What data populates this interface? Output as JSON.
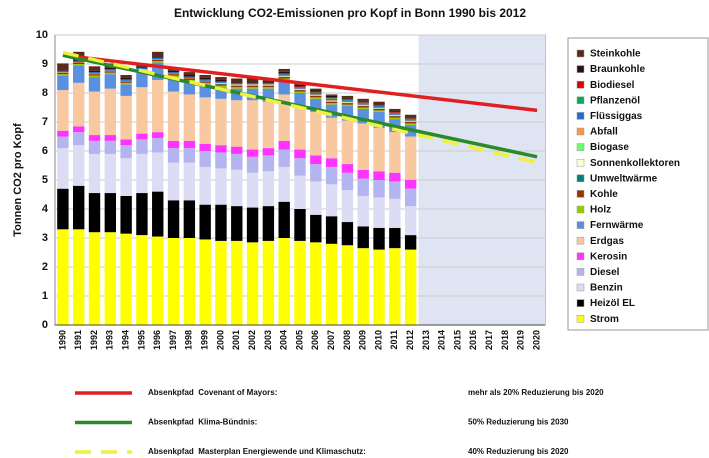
{
  "chart_data": {
    "type": "bar",
    "stacked": true,
    "title": "Entwicklung CO2-Emissionen pro Kopf in Bonn 1990 bis 2012",
    "y_label": "Tonnen CO2 pro Kopf",
    "categories": [
      "1990",
      "1991",
      "1992",
      "1993",
      "1994",
      "1995",
      "1996",
      "1997",
      "1998",
      "1999",
      "2000",
      "2001",
      "2002",
      "2003",
      "2004",
      "2005",
      "2006",
      "2007",
      "2008",
      "2009",
      "2010",
      "2011",
      "2012",
      "2013",
      "2014",
      "2015",
      "2016",
      "2017",
      "2018",
      "2019",
      "2020"
    ],
    "ylim": [
      0,
      10
    ],
    "yticks": [
      0,
      1,
      2,
      3,
      4,
      5,
      6,
      7,
      8,
      9,
      10
    ],
    "grid": true,
    "legend": "right",
    "series": [
      {
        "name": "Steinkohle",
        "color": "#5a2a1a",
        "values": [
          0.2,
          0.25,
          0.15,
          0.15,
          0.1,
          0.1,
          0.15,
          0.1,
          0.1,
          0.1,
          0.1,
          0.1,
          0.1,
          0.1,
          0.1,
          0.05,
          0.05,
          0.05,
          0.05,
          0.05,
          0.05,
          0.05,
          0.05,
          null,
          null,
          null,
          null,
          null,
          null,
          null,
          null
        ]
      },
      {
        "name": "Braunkohle",
        "color": "#2a1010",
        "values": [
          0.05,
          0.05,
          0.05,
          0.05,
          0.05,
          0.05,
          0.05,
          0.05,
          0.05,
          0.05,
          0.05,
          0.05,
          0.05,
          0.05,
          0.05,
          0.05,
          0.05,
          0.05,
          0.05,
          0.05,
          0.05,
          0.05,
          0.05,
          null,
          null,
          null,
          null,
          null,
          null,
          null,
          null
        ]
      },
      {
        "name": "Biodiesel",
        "color": "#e00000",
        "values": [
          0,
          0,
          0,
          0,
          0,
          0,
          0,
          0,
          0,
          0,
          0,
          0,
          0,
          0,
          0.03,
          0.03,
          0.03,
          0.03,
          0.03,
          0.03,
          0.03,
          0.03,
          0.03,
          null,
          null,
          null,
          null,
          null,
          null,
          null,
          null
        ]
      },
      {
        "name": "Pflanzenöl",
        "color": "#00b050",
        "values": [
          0,
          0,
          0,
          0,
          0,
          0,
          0,
          0,
          0,
          0,
          0,
          0,
          0,
          0,
          0,
          0,
          0.02,
          0.02,
          0.02,
          0.02,
          0.02,
          0.02,
          0.02,
          null,
          null,
          null,
          null,
          null,
          null,
          null,
          null
        ]
      },
      {
        "name": "Flüssiggas",
        "color": "#1f6fd0",
        "values": [
          0.05,
          0.05,
          0.05,
          0.05,
          0.05,
          0.05,
          0.05,
          0.05,
          0.05,
          0.05,
          0.05,
          0.05,
          0.05,
          0.05,
          0.05,
          0.05,
          0.05,
          0.05,
          0.05,
          0.05,
          0.05,
          0.05,
          0.05,
          null,
          null,
          null,
          null,
          null,
          null,
          null,
          null
        ]
      },
      {
        "name": "Abfall",
        "color": "#f79646",
        "values": [
          0.02,
          0.02,
          0.02,
          0.02,
          0.02,
          0.02,
          0.02,
          0.02,
          0.02,
          0.02,
          0.02,
          0.02,
          0.02,
          0.02,
          0.02,
          0.02,
          0.02,
          0.02,
          0.02,
          0.02,
          0.02,
          0.02,
          0.02,
          null,
          null,
          null,
          null,
          null,
          null,
          null,
          null
        ]
      },
      {
        "name": "Biogase",
        "color": "#66ff66",
        "values": [
          0,
          0,
          0,
          0,
          0,
          0,
          0,
          0,
          0,
          0,
          0.01,
          0.01,
          0.01,
          0.01,
          0.01,
          0.01,
          0.01,
          0.01,
          0.01,
          0.01,
          0.01,
          0.01,
          0.01,
          null,
          null,
          null,
          null,
          null,
          null,
          null,
          null
        ]
      },
      {
        "name": "Sonnenkollektoren",
        "color": "#ffffcc",
        "values": [
          0,
          0,
          0,
          0,
          0,
          0,
          0,
          0,
          0,
          0,
          0.01,
          0.01,
          0.01,
          0.01,
          0.01,
          0.01,
          0.01,
          0.01,
          0.01,
          0.01,
          0.01,
          0.01,
          0.01,
          null,
          null,
          null,
          null,
          null,
          null,
          null,
          null
        ]
      },
      {
        "name": "Umweltwärme",
        "color": "#008080",
        "values": [
          0,
          0,
          0,
          0,
          0,
          0,
          0,
          0,
          0,
          0,
          0.01,
          0.01,
          0.01,
          0.01,
          0.01,
          0.01,
          0.01,
          0.01,
          0.01,
          0.01,
          0.01,
          0.01,
          0.01,
          null,
          null,
          null,
          null,
          null,
          null,
          null,
          null
        ]
      },
      {
        "name": "Kohle",
        "color": "#993300",
        "values": [
          0.05,
          0.05,
          0.05,
          0.05,
          0.05,
          0.05,
          0.05,
          0.05,
          0.05,
          0.05,
          0.05,
          0.05,
          0.05,
          0.05,
          0.05,
          0.05,
          0.05,
          0.05,
          0.05,
          0.05,
          0.05,
          0.05,
          0.05,
          null,
          null,
          null,
          null,
          null,
          null,
          null,
          null
        ]
      },
      {
        "name": "Holz",
        "color": "#99cc00",
        "values": [
          0.05,
          0.05,
          0.05,
          0.05,
          0.05,
          0.05,
          0.05,
          0.05,
          0.05,
          0.05,
          0.05,
          0.05,
          0.05,
          0.05,
          0.05,
          0.05,
          0.05,
          0.05,
          0.05,
          0.05,
          0.05,
          0.05,
          0.05,
          null,
          null,
          null,
          null,
          null,
          null,
          null,
          null
        ]
      },
      {
        "name": "Fernwärme",
        "color": "#5b8fe0",
        "values": [
          0.5,
          0.6,
          0.5,
          0.5,
          0.4,
          0.5,
          0.6,
          0.5,
          0.45,
          0.45,
          0.4,
          0.4,
          0.4,
          0.45,
          0.5,
          0.45,
          0.45,
          0.45,
          0.5,
          0.5,
          0.55,
          0.45,
          0.4,
          null,
          null,
          null,
          null,
          null,
          null,
          null,
          null
        ]
      },
      {
        "name": "Erdgas",
        "color": "#f8c8a0",
        "values": [
          1.4,
          1.5,
          1.5,
          1.6,
          1.5,
          1.6,
          1.8,
          1.7,
          1.6,
          1.6,
          1.6,
          1.6,
          1.7,
          1.6,
          1.6,
          1.5,
          1.5,
          1.4,
          1.5,
          1.6,
          1.5,
          1.4,
          1.5,
          null,
          null,
          null,
          null,
          null,
          null,
          null,
          null
        ]
      },
      {
        "name": "Kerosin",
        "color": "#ff33ff",
        "values": [
          0.2,
          0.2,
          0.2,
          0.2,
          0.2,
          0.2,
          0.2,
          0.25,
          0.25,
          0.25,
          0.25,
          0.25,
          0.25,
          0.25,
          0.3,
          0.3,
          0.3,
          0.3,
          0.3,
          0.3,
          0.3,
          0.3,
          0.3,
          null,
          null,
          null,
          null,
          null,
          null,
          null,
          null
        ]
      },
      {
        "name": "Diesel",
        "color": "#b4b4f0",
        "values": [
          0.4,
          0.45,
          0.45,
          0.45,
          0.45,
          0.5,
          0.5,
          0.5,
          0.5,
          0.55,
          0.55,
          0.55,
          0.55,
          0.55,
          0.6,
          0.6,
          0.6,
          0.6,
          0.6,
          0.6,
          0.6,
          0.6,
          0.6,
          null,
          null,
          null,
          null,
          null,
          null,
          null,
          null
        ]
      },
      {
        "name": "Benzin",
        "color": "#dcdcf5",
        "values": [
          1.4,
          1.4,
          1.35,
          1.35,
          1.3,
          1.35,
          1.35,
          1.3,
          1.3,
          1.3,
          1.25,
          1.25,
          1.2,
          1.2,
          1.2,
          1.15,
          1.15,
          1.1,
          1.1,
          1.05,
          1.05,
          1.0,
          1.0,
          null,
          null,
          null,
          null,
          null,
          null,
          null,
          null
        ]
      },
      {
        "name": "Heizöl EL",
        "color": "#000000",
        "values": [
          1.4,
          1.5,
          1.35,
          1.35,
          1.3,
          1.45,
          1.55,
          1.3,
          1.3,
          1.2,
          1.25,
          1.2,
          1.2,
          1.2,
          1.25,
          1.1,
          0.95,
          0.95,
          0.8,
          0.75,
          0.75,
          0.7,
          0.5,
          null,
          null,
          null,
          null,
          null,
          null,
          null,
          null
        ]
      },
      {
        "name": "Strom",
        "color": "#ffff00",
        "values": [
          3.3,
          3.3,
          3.2,
          3.2,
          3.15,
          3.1,
          3.05,
          3.0,
          3.0,
          2.95,
          2.9,
          2.9,
          2.85,
          2.9,
          3.0,
          2.9,
          2.85,
          2.8,
          2.75,
          2.65,
          2.6,
          2.65,
          2.6,
          null,
          null,
          null,
          null,
          null,
          null,
          null,
          null
        ]
      }
    ],
    "lines": [
      {
        "name": "Absenkpfad  Covenant of Mayors:",
        "description": "mehr als 20% Reduzierung bis 2020",
        "color": "#e02020",
        "dash": false,
        "x": [
          "1990",
          "2020"
        ],
        "values": [
          9.3,
          7.4
        ]
      },
      {
        "name": "Absenkpfad  Klima-Bündnis:",
        "description": "50% Reduzierung bis 2030",
        "color": "#2a8a2a",
        "dash": false,
        "x": [
          "1990",
          "2020"
        ],
        "values": [
          9.3,
          5.8
        ]
      },
      {
        "name": "Absenkpfad  Masterplan Energiewende und Klimaschutz:",
        "description": "40% Reduzierung bis 2020",
        "color": "#f0f040",
        "dash": true,
        "x": [
          "1990",
          "2020"
        ],
        "values": [
          9.4,
          5.6
        ]
      }
    ]
  }
}
